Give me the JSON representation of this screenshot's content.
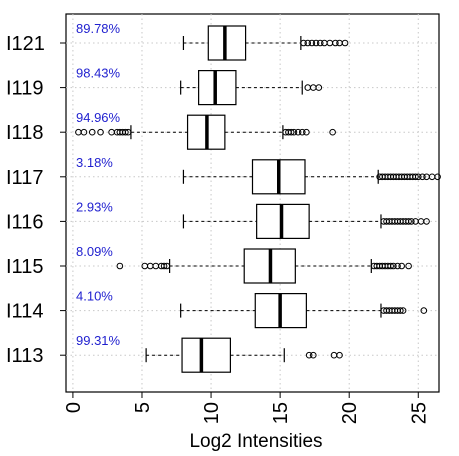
{
  "chart_data": {
    "type": "boxplot",
    "orientation": "horizontal",
    "xlabel": "Log2 Intensities",
    "xlim": [
      -0.5,
      26.5
    ],
    "xticks": [
      0,
      5,
      10,
      15,
      20,
      25
    ],
    "xtick_labels": [
      "0",
      "5",
      "10",
      "15",
      "20",
      "25"
    ],
    "grid": true,
    "categories": [
      "I121",
      "I119",
      "I118",
      "I117",
      "I116",
      "I115",
      "I114",
      "I113"
    ],
    "annotations": [
      "89.78%",
      "98.43%",
      "94.96%",
      "3.18%",
      "2.93%",
      "8.09%",
      "4.10%",
      "99.31%"
    ],
    "boxes": [
      {
        "label": "I121",
        "whisker_low": 8.0,
        "q1": 9.8,
        "median": 11.0,
        "q3": 12.5,
        "whisker_high": 16.5,
        "outliers": [
          16.7,
          17.0,
          17.3,
          17.6,
          17.9,
          18.2,
          18.6,
          19.0,
          19.3,
          19.7
        ]
      },
      {
        "label": "I119",
        "whisker_low": 7.8,
        "q1": 9.1,
        "median": 10.3,
        "q3": 11.8,
        "whisker_high": 16.6,
        "outliers": [
          17.0,
          17.4,
          17.8
        ]
      },
      {
        "label": "I118",
        "whisker_low": 4.2,
        "q1": 8.3,
        "median": 9.7,
        "q3": 11.0,
        "whisker_high": 15.2,
        "outliers": [
          0.4,
          0.8,
          1.4,
          2.0,
          2.8,
          3.2,
          3.4,
          3.6,
          3.8,
          4.0,
          15.4,
          15.6,
          15.8,
          16.0,
          16.3,
          16.6,
          16.9,
          18.8
        ]
      },
      {
        "label": "I117",
        "whisker_low": 8.0,
        "q1": 13.0,
        "median": 14.9,
        "q3": 16.8,
        "whisker_high": 22.1,
        "outliers": [
          22.2,
          22.4,
          22.6,
          22.8,
          23.0,
          23.2,
          23.4,
          23.6,
          23.8,
          24.0,
          24.2,
          24.4,
          24.6,
          24.8,
          25.0,
          25.3,
          25.6,
          26.0,
          26.4
        ]
      },
      {
        "label": "I116",
        "whisker_low": 8.0,
        "q1": 13.3,
        "median": 15.1,
        "q3": 17.1,
        "whisker_high": 22.3,
        "outliers": [
          22.5,
          22.7,
          22.9,
          23.1,
          23.3,
          23.5,
          23.7,
          23.9,
          24.1,
          24.3,
          24.5,
          24.8,
          25.2,
          25.6
        ]
      },
      {
        "label": "I115",
        "whisker_low": 7.0,
        "q1": 12.4,
        "median": 14.3,
        "q3": 16.1,
        "whisker_high": 21.6,
        "outliers": [
          3.4,
          5.2,
          5.6,
          6.0,
          6.4,
          6.6,
          6.8,
          21.8,
          22.0,
          22.2,
          22.4,
          22.6,
          22.8,
          23.0,
          23.2,
          23.5,
          23.8,
          24.3
        ]
      },
      {
        "label": "I114",
        "whisker_low": 7.8,
        "q1": 13.2,
        "median": 15.0,
        "q3": 16.9,
        "whisker_high": 22.3,
        "outliers": [
          22.5,
          22.7,
          22.9,
          23.1,
          23.3,
          23.5,
          23.7,
          23.9,
          25.4
        ]
      },
      {
        "label": "I113",
        "whisker_low": 5.3,
        "q1": 7.9,
        "median": 9.3,
        "q3": 11.4,
        "whisker_high": 15.3,
        "outliers": [
          17.1,
          17.4,
          18.9,
          19.3
        ]
      }
    ],
    "colors": {
      "box_stroke": "#000000",
      "annotation": "#1f1fcf",
      "grid": "#c8c8c8",
      "background": "#ffffff"
    }
  }
}
